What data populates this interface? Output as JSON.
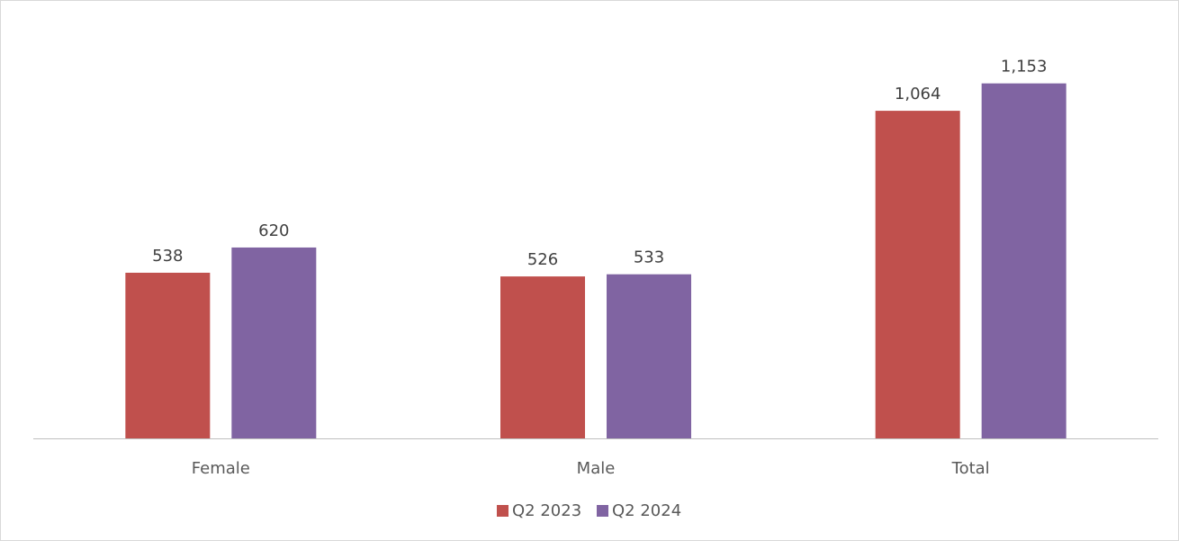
{
  "chart_data": {
    "type": "bar",
    "title": "",
    "xlabel": "",
    "ylabel": "",
    "categories": [
      "Female",
      "Male",
      "Total"
    ],
    "series": [
      {
        "name": "Q2 2023",
        "values": [
          538,
          526,
          1064
        ],
        "labels": [
          "538",
          "526",
          "1,064"
        ],
        "color": "#C0504D"
      },
      {
        "name": "Q2 2024",
        "values": [
          620,
          533,
          1153
        ],
        "labels": [
          "620",
          "533",
          "1,153"
        ],
        "color": "#8064A2"
      }
    ],
    "ylim": [
      0,
      1380
    ],
    "grid": false,
    "legend_position": "bottom"
  },
  "colors": {
    "axis": "#BFBFBF",
    "border": "#D9D9D9"
  }
}
